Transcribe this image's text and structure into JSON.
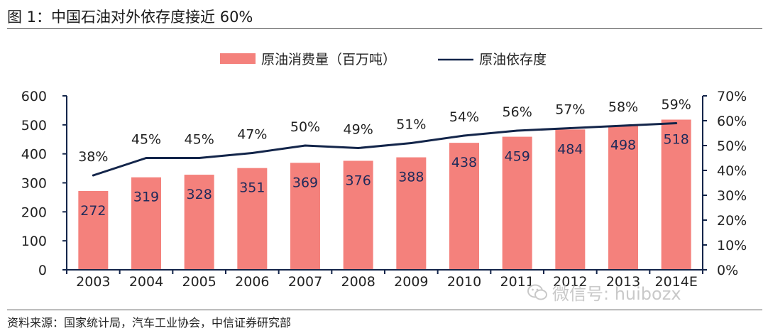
{
  "figure": {
    "title": "图 1：中国石油对外依存度接近 60%",
    "source": "资料来源：国家统计局，汽车工业协会，中信证券研究部",
    "watermark": "微信号: huibozx"
  },
  "colors": {
    "bar": "#f4817c",
    "line": "#13254a",
    "axis": "#13254a",
    "bar_label": "#1f2a5a",
    "text": "#222222"
  },
  "chart_data": {
    "type": "bar",
    "categories": [
      "2003",
      "2004",
      "2005",
      "2006",
      "2007",
      "2008",
      "2009",
      "2010",
      "2011",
      "2012",
      "2013",
      "2014E"
    ],
    "series": [
      {
        "name": "原油消费量（百万吨）",
        "type": "bar",
        "axis": "left",
        "values": [
          272,
          319,
          328,
          351,
          369,
          376,
          388,
          438,
          459,
          484,
          498,
          518
        ],
        "labels": [
          "272",
          "319",
          "328",
          "351",
          "369",
          "376",
          "388",
          "438",
          "459",
          "484",
          "498",
          "518"
        ]
      },
      {
        "name": "原油依存度",
        "type": "line",
        "axis": "right",
        "values": [
          38,
          45,
          45,
          47,
          50,
          49,
          51,
          54,
          56,
          57,
          58,
          59
        ],
        "labels": [
          "38%",
          "45%",
          "45%",
          "47%",
          "50%",
          "49%",
          "51%",
          "54%",
          "56%",
          "57%",
          "58%",
          "59%"
        ]
      }
    ],
    "y_left": {
      "min": 0,
      "max": 600,
      "ticks": [
        0,
        100,
        200,
        300,
        400,
        500,
        600
      ],
      "tick_labels": [
        "0",
        "100",
        "200",
        "300",
        "400",
        "500",
        "600"
      ]
    },
    "y_right": {
      "min": 0,
      "max": 70,
      "ticks": [
        0,
        10,
        20,
        30,
        40,
        50,
        60,
        70
      ],
      "tick_labels": [
        "0%",
        "10%",
        "20%",
        "30%",
        "40%",
        "50%",
        "60%",
        "70%"
      ]
    },
    "legend_position": "top-center",
    "grid": false
  }
}
